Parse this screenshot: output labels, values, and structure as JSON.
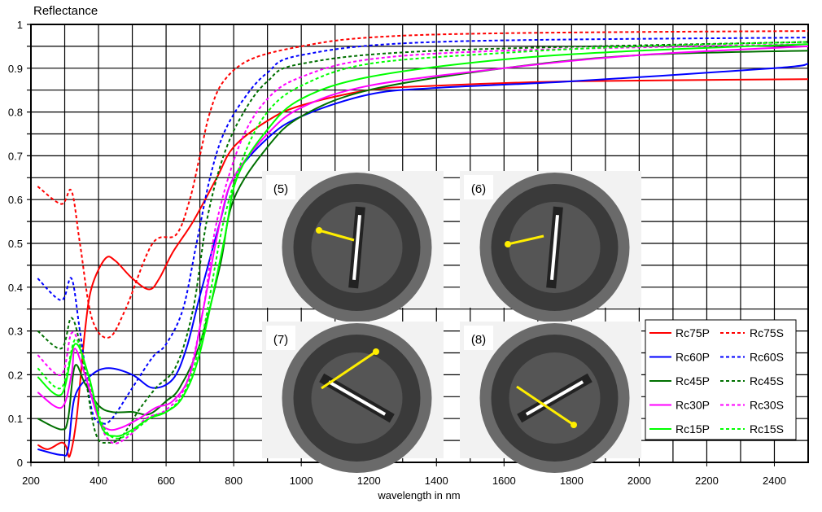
{
  "chart_data": {
    "type": "line",
    "title": "",
    "ylabel": "Reflectance",
    "xlabel": "wavelength in nm",
    "xlim": [
      200,
      2500
    ],
    "ylim": [
      0,
      1
    ],
    "xticks": [
      200,
      400,
      600,
      800,
      1000,
      1200,
      1400,
      1600,
      1800,
      2000,
      2200,
      2400
    ],
    "yticks": [
      0,
      0.1,
      0.2,
      0.3,
      0.4,
      0.5,
      0.6,
      0.7,
      0.8,
      0.9,
      1
    ],
    "ytick_labels": [
      "0",
      "0.1",
      "0.2",
      "0.3",
      "0.4",
      "0.5",
      "0.6",
      "0.7",
      "0.8",
      "0.9",
      "1"
    ],
    "grid": {
      "x_step": 100,
      "y_step": 0.05
    },
    "legend_position": "bottom-right",
    "series": [
      {
        "name": "Rc75P",
        "color": "#ff0000",
        "dash": false,
        "x": [
          220,
          250,
          290,
          305,
          315,
          335,
          360,
          380,
          420,
          450,
          500,
          550,
          580,
          620,
          680,
          750,
          800,
          900,
          1000,
          1200,
          1400,
          1800,
          2500
        ],
        "y": [
          0.04,
          0.03,
          0.045,
          0.035,
          0.015,
          0.1,
          0.3,
          0.4,
          0.465,
          0.46,
          0.42,
          0.395,
          0.42,
          0.48,
          0.55,
          0.65,
          0.72,
          0.78,
          0.815,
          0.85,
          0.86,
          0.87,
          0.875
        ]
      },
      {
        "name": "Rc75S",
        "color": "#ff0000",
        "dash": true,
        "x": [
          220,
          290,
          320,
          345,
          380,
          430,
          480,
          560,
          630,
          670,
          700,
          730,
          770,
          850,
          1000,
          1200,
          1600,
          2500
        ],
        "y": [
          0.63,
          0.59,
          0.62,
          0.5,
          0.33,
          0.285,
          0.35,
          0.5,
          0.52,
          0.6,
          0.7,
          0.8,
          0.87,
          0.92,
          0.95,
          0.97,
          0.98,
          0.985
        ]
      },
      {
        "name": "Rc60P",
        "color": "#0000ff",
        "dash": false,
        "x": [
          220,
          290,
          310,
          330,
          380,
          430,
          500,
          560,
          620,
          660,
          700,
          760,
          800,
          900,
          1000,
          1200,
          1400,
          1800,
          2400,
          2500
        ],
        "y": [
          0.03,
          0.017,
          0.03,
          0.15,
          0.2,
          0.215,
          0.2,
          0.17,
          0.19,
          0.26,
          0.38,
          0.55,
          0.65,
          0.74,
          0.79,
          0.84,
          0.855,
          0.87,
          0.9,
          0.91
        ]
      },
      {
        "name": "Rc60S",
        "color": "#0000ff",
        "dash": true,
        "x": [
          220,
          290,
          320,
          345,
          380,
          410,
          440,
          500,
          560,
          600,
          650,
          690,
          730,
          770,
          830,
          900,
          1000,
          1400,
          2500
        ],
        "y": [
          0.42,
          0.37,
          0.42,
          0.3,
          0.12,
          0.09,
          0.1,
          0.17,
          0.24,
          0.27,
          0.35,
          0.5,
          0.65,
          0.75,
          0.83,
          0.89,
          0.93,
          0.96,
          0.97
        ]
      },
      {
        "name": "Rc45P",
        "color": "#007000",
        "dash": false,
        "x": [
          220,
          290,
          310,
          330,
          360,
          400,
          440,
          500,
          550,
          600,
          640,
          700,
          760,
          800,
          900,
          1000,
          1200,
          1600,
          2000,
          2500
        ],
        "y": [
          0.1,
          0.075,
          0.1,
          0.22,
          0.18,
          0.13,
          0.115,
          0.115,
          0.11,
          0.14,
          0.17,
          0.27,
          0.45,
          0.6,
          0.72,
          0.79,
          0.85,
          0.9,
          0.93,
          0.94
        ]
      },
      {
        "name": "Rc45S",
        "color": "#007000",
        "dash": true,
        "x": [
          220,
          290,
          320,
          350,
          390,
          430,
          470,
          520,
          570,
          630,
          680,
          720,
          770,
          830,
          900,
          1000,
          1400,
          2500
        ],
        "y": [
          0.3,
          0.26,
          0.33,
          0.25,
          0.07,
          0.045,
          0.06,
          0.12,
          0.17,
          0.22,
          0.35,
          0.55,
          0.7,
          0.8,
          0.87,
          0.91,
          0.94,
          0.96
        ]
      },
      {
        "name": "Rc30P",
        "color": "#ff00ff",
        "dash": false,
        "x": [
          220,
          290,
          320,
          330,
          360,
          400,
          430,
          470,
          520,
          570,
          620,
          670,
          710,
          760,
          800,
          900,
          1000,
          1200,
          1600,
          2000,
          2500
        ],
        "y": [
          0.16,
          0.125,
          0.2,
          0.26,
          0.2,
          0.1,
          0.075,
          0.08,
          0.1,
          0.125,
          0.14,
          0.2,
          0.35,
          0.55,
          0.65,
          0.75,
          0.81,
          0.86,
          0.9,
          0.93,
          0.95
        ]
      },
      {
        "name": "Rc30S",
        "color": "#ff00ff",
        "dash": true,
        "x": [
          220,
          290,
          320,
          350,
          400,
          440,
          490,
          540,
          600,
          660,
          710,
          750,
          820,
          900,
          1000,
          1200,
          1600,
          2500
        ],
        "y": [
          0.245,
          0.2,
          0.295,
          0.25,
          0.1,
          0.045,
          0.06,
          0.1,
          0.12,
          0.18,
          0.35,
          0.55,
          0.73,
          0.83,
          0.88,
          0.92,
          0.94,
          0.955
        ]
      },
      {
        "name": "Rc15P",
        "color": "#00ff00",
        "dash": false,
        "x": [
          220,
          290,
          330,
          370,
          410,
          450,
          490,
          550,
          600,
          650,
          700,
          770,
          810,
          900,
          1000,
          1200,
          1600,
          2000,
          2500
        ],
        "y": [
          0.195,
          0.155,
          0.27,
          0.2,
          0.08,
          0.06,
          0.07,
          0.1,
          0.115,
          0.15,
          0.25,
          0.5,
          0.65,
          0.76,
          0.83,
          0.88,
          0.92,
          0.94,
          0.955
        ]
      },
      {
        "name": "Rc15S",
        "color": "#00ff00",
        "dash": true,
        "x": [
          220,
          290,
          330,
          360,
          410,
          450,
          500,
          560,
          610,
          660,
          710,
          770,
          830,
          900,
          1000,
          1200,
          1600,
          2000,
          2500
        ],
        "y": [
          0.215,
          0.17,
          0.28,
          0.22,
          0.09,
          0.055,
          0.07,
          0.105,
          0.12,
          0.17,
          0.3,
          0.55,
          0.7,
          0.8,
          0.86,
          0.91,
          0.935,
          0.95,
          0.96
        ]
      }
    ]
  },
  "insets": [
    {
      "label": "(5)"
    },
    {
      "label": "(6)"
    },
    {
      "label": "(7)"
    },
    {
      "label": "(8)"
    }
  ]
}
